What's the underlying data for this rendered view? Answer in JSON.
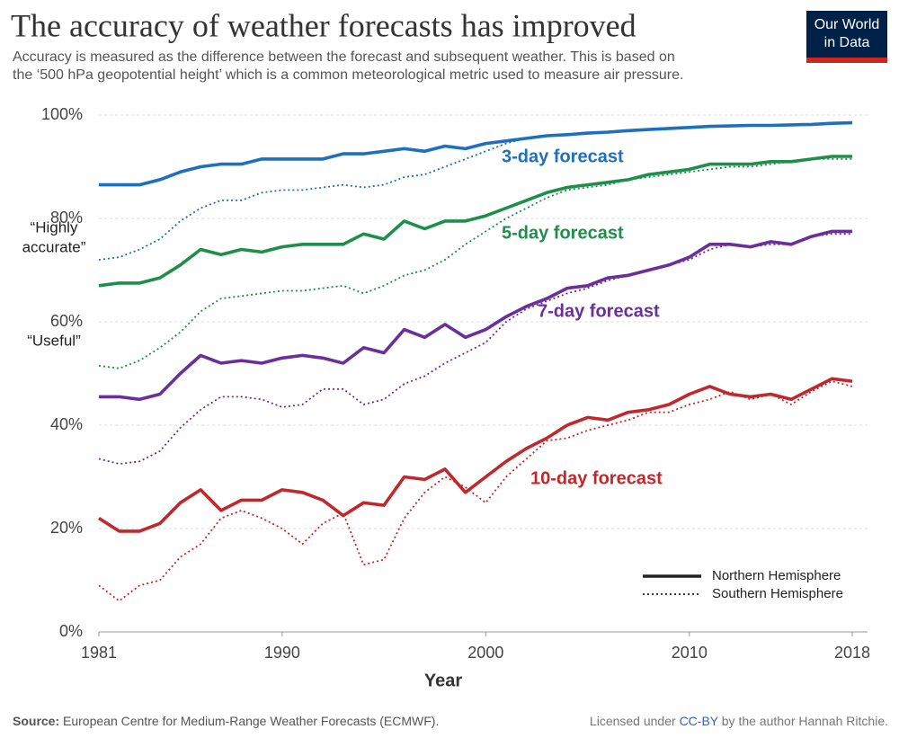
{
  "title": "The accuracy of weather forecasts has improved",
  "subtitle": [
    "Accuracy is measured as the difference between the forecast and subsequent weather. This is based on",
    "the ‘500 hPa geopotential height’ which is a common meteorological metric used to measure air pressure."
  ],
  "logo": [
    "Our World",
    "in Data"
  ],
  "source": {
    "label": "Source:",
    "text": "European Centre for Medium-Range Weather Forecasts (ECMWF)."
  },
  "license": {
    "prefix": "Licensed under",
    "link": "CC-BY",
    "suffix": "by the author Hannah Ritchie."
  },
  "chart_data": {
    "type": "line",
    "xlabel": "Year",
    "x": [
      1981,
      1982,
      1983,
      1984,
      1985,
      1986,
      1987,
      1988,
      1989,
      1990,
      1991,
      1992,
      1993,
      1994,
      1995,
      1996,
      1997,
      1998,
      1999,
      2000,
      2001,
      2002,
      2003,
      2004,
      2005,
      2006,
      2007,
      2008,
      2009,
      2010,
      2011,
      2012,
      2013,
      2014,
      2015,
      2016,
      2017,
      2018
    ],
    "xlim": [
      1981,
      2018
    ],
    "xticks": [
      1981,
      1990,
      2000,
      2010,
      2018
    ],
    "ylim": [
      0,
      100
    ],
    "yticks": [
      {
        "value": 0,
        "label": "0%"
      },
      {
        "value": 20,
        "label": "20%"
      },
      {
        "value": 40,
        "label": "40%"
      },
      {
        "value": 60,
        "label": "60%"
      },
      {
        "value": 80,
        "label": "80%"
      },
      {
        "value": 100,
        "label": "100%"
      }
    ],
    "grid": true,
    "legend": {
      "solid": "Northern Hemisphere",
      "dotted": "Southern Hemisphere"
    },
    "annotations": [
      {
        "lines": [
          "“Highly",
          "accurate”"
        ],
        "y": 80
      },
      {
        "lines": [
          "“Useful”"
        ],
        "y": 60
      }
    ],
    "series": [
      {
        "name": "3-day forecast",
        "color": "#1f6fbf",
        "northern": [
          86.5,
          86.5,
          86.5,
          87.5,
          89,
          90,
          90.5,
          90.5,
          91.5,
          91.5,
          91.5,
          91.5,
          92.5,
          92.5,
          93,
          93.5,
          93,
          94,
          93.5,
          94.5,
          95,
          95.5,
          96,
          96.2,
          96.5,
          96.7,
          97,
          97.2,
          97.4,
          97.6,
          97.8,
          97.9,
          98,
          98,
          98.1,
          98.2,
          98.4,
          98.5
        ],
        "southern": [
          72,
          72.5,
          74,
          76,
          79.5,
          82,
          83.5,
          83.5,
          85,
          85.5,
          85.5,
          86,
          86.5,
          86,
          86.5,
          88,
          88.5,
          90,
          91.5,
          93,
          94.5,
          95.5,
          96,
          96.2,
          96.5,
          96.7,
          97,
          97.2,
          97.4,
          97.6,
          97.8,
          97.9,
          98,
          98,
          98.1,
          98.2,
          98.4,
          98.5
        ]
      },
      {
        "name": "5-day forecast",
        "color": "#1e8f4a",
        "northern": [
          67,
          67.5,
          67.5,
          68.5,
          71,
          74,
          73,
          74,
          73.5,
          74.5,
          75,
          75,
          75,
          77,
          76,
          79.5,
          78,
          79.5,
          79.5,
          80.5,
          82,
          83.5,
          85,
          86,
          86.5,
          87,
          87.5,
          88.5,
          89,
          89.5,
          90.5,
          90.5,
          90.5,
          91,
          91,
          91.5,
          92,
          92
        ],
        "southern": [
          51.5,
          51,
          52.5,
          55,
          58,
          62,
          64.5,
          65,
          65.5,
          66,
          66,
          66.5,
          67,
          65.5,
          67,
          69,
          70,
          72,
          75,
          77.5,
          80,
          82,
          84,
          85.5,
          86,
          86.5,
          87.5,
          88,
          88.5,
          89,
          89.5,
          90,
          90,
          90.5,
          91,
          91.5,
          91.5,
          91.5
        ]
      },
      {
        "name": "7-day forecast",
        "color": "#6a2f9a",
        "northern": [
          45.5,
          45.5,
          45,
          46,
          50,
          53.5,
          52,
          52.5,
          52,
          53,
          53.5,
          53,
          52,
          55,
          54,
          58.5,
          57,
          59.5,
          57,
          58.5,
          61,
          63,
          64.5,
          66.5,
          67,
          68.5,
          69,
          70,
          71,
          72.5,
          75,
          75,
          74.5,
          75.5,
          75,
          76.5,
          77.5,
          77.5
        ],
        "southern": [
          33.5,
          32.5,
          33,
          35,
          39.5,
          43,
          45.5,
          45.5,
          45,
          43.5,
          44,
          47,
          47,
          44,
          45,
          48,
          49.5,
          52,
          54,
          56,
          60,
          62.5,
          64,
          65.5,
          66.5,
          68,
          69,
          70,
          71,
          72,
          74,
          75,
          74.5,
          75,
          75,
          76.5,
          77,
          77
        ]
      },
      {
        "name": "10-day forecast",
        "color": "#c0282d",
        "northern": [
          22,
          19.5,
          19.5,
          21,
          25,
          27.5,
          23.5,
          25.5,
          25.5,
          27.5,
          27,
          25.5,
          22.5,
          25,
          24.5,
          30,
          29.5,
          31.5,
          27,
          30,
          33,
          35.5,
          37.5,
          40,
          41.5,
          41,
          42.5,
          43,
          44,
          46,
          47.5,
          46,
          45.5,
          46,
          45,
          47,
          49,
          48.5
        ],
        "southern": [
          9,
          6,
          9,
          10,
          14.5,
          17,
          22,
          23.5,
          22,
          20,
          17,
          21,
          23,
          13,
          14,
          22,
          27,
          30,
          28,
          25,
          30,
          33.5,
          37,
          37.5,
          39,
          40,
          41,
          42.5,
          42.5,
          44,
          45,
          46.5,
          45,
          46,
          44,
          46.5,
          48.5,
          47.5
        ]
      }
    ]
  }
}
